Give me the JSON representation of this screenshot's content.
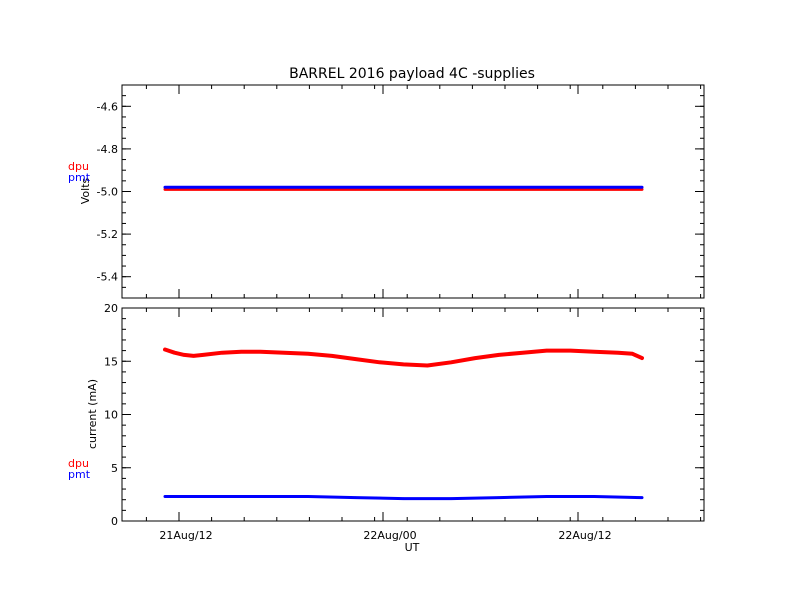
{
  "chart_data": [
    {
      "type": "line",
      "title": "BARREL 2016 payload 4C -supplies",
      "ylabel": "Volts",
      "xlabel": "",
      "ylim": [
        -5.5,
        -4.5
      ],
      "yticks": [
        "-4.6",
        "-4.8",
        "-5.0",
        "-5.2",
        "-5.4"
      ],
      "ytick_values": [
        -4.6,
        -4.8,
        -5.0,
        -5.2,
        -5.4
      ],
      "legend": {
        "placement": "left",
        "entries": [
          "dpu",
          "pmt"
        ]
      },
      "series": [
        {
          "name": "dpu",
          "color": "#ff0000",
          "x": [
            0,
            20,
            40,
            60,
            80,
            100
          ],
          "values": [
            -4.99,
            -4.99,
            -4.99,
            -4.99,
            -4.99,
            -4.99
          ]
        },
        {
          "name": "pmt",
          "color": "#0000ff",
          "x": [
            0,
            20,
            40,
            60,
            80,
            100
          ],
          "values": [
            -4.98,
            -4.98,
            -4.98,
            -4.98,
            -4.98,
            -4.98
          ]
        }
      ]
    },
    {
      "type": "line",
      "title": "",
      "ylabel": "current (mA)",
      "xlabel": "UT",
      "ylim": [
        0,
        20
      ],
      "yticks": [
        "0",
        "5",
        "10",
        "15",
        "20"
      ],
      "ytick_values": [
        0,
        5,
        10,
        15,
        20
      ],
      "xticks": [
        "21Aug/12",
        "22Aug/00",
        "22Aug/12"
      ],
      "legend": {
        "placement": "left",
        "entries": [
          "dpu",
          "pmt"
        ]
      },
      "series": [
        {
          "name": "dpu",
          "color": "#ff0000",
          "x": [
            0,
            2,
            4,
            6,
            8,
            12,
            16,
            20,
            25,
            30,
            35,
            40,
            45,
            50,
            55,
            60,
            65,
            70,
            75,
            80,
            85,
            90,
            95,
            98,
            100
          ],
          "values": [
            16.1,
            15.8,
            15.6,
            15.5,
            15.6,
            15.8,
            15.9,
            15.9,
            15.8,
            15.7,
            15.5,
            15.2,
            14.9,
            14.7,
            14.6,
            14.9,
            15.3,
            15.6,
            15.8,
            16.0,
            16.0,
            15.9,
            15.8,
            15.7,
            15.3
          ]
        },
        {
          "name": "pmt",
          "color": "#0000ff",
          "x": [
            0,
            10,
            20,
            30,
            40,
            50,
            60,
            70,
            80,
            90,
            100
          ],
          "values": [
            2.3,
            2.3,
            2.3,
            2.3,
            2.2,
            2.1,
            2.1,
            2.2,
            2.3,
            2.3,
            2.2
          ]
        }
      ]
    }
  ]
}
